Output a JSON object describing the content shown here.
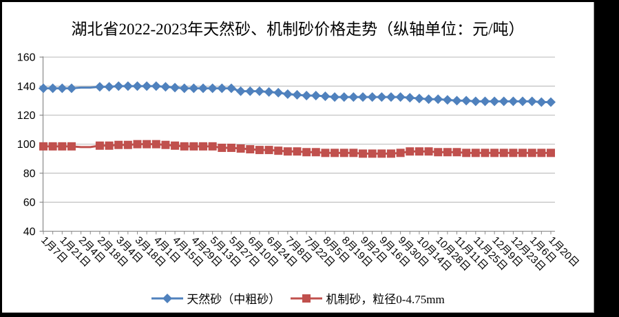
{
  "window": {
    "background": "#000000",
    "chart_background": "#ffffff"
  },
  "chart_data": {
    "type": "line",
    "title": "湖北省2022-2023年天然砂、机制砂价格走势（纵轴单位：元/吨）",
    "xlabel": "",
    "ylabel": "元/吨",
    "ylim": [
      40,
      160
    ],
    "yticks": [
      40,
      60,
      80,
      100,
      120,
      140,
      160
    ],
    "grid": "horizontal",
    "legend_position": "bottom",
    "x_tick_labels": [
      "1月7日",
      "1月21日",
      "2月4日",
      "2月18日",
      "3月4日",
      "3月18日",
      "4月1日",
      "4月15日",
      "4月29日",
      "5月13日",
      "5月27日",
      "6月10日",
      "6月24日",
      "7月8日",
      "7月22日",
      "8月5日",
      "8月19日",
      "9月2日",
      "9月16日",
      "9月30日",
      "10月14日",
      "10月28日",
      "11月11日",
      "11月25日",
      "12月9日",
      "12月23日",
      "1月6日",
      "1月20日"
    ],
    "points_per_label": 2,
    "n_points": 55,
    "no_marker_points": [
      5,
      6
    ],
    "series": [
      {
        "name": "天然砂（中粗砂）",
        "color": "#4F81BD",
        "marker": "diamond",
        "values": [
          138.5,
          138.5,
          138.5,
          138.5,
          139,
          139,
          139.5,
          139.5,
          140,
          140,
          140,
          140,
          140,
          139.5,
          139,
          138.5,
          138.5,
          138.5,
          138.5,
          138.5,
          138.5,
          136.5,
          136.5,
          136.5,
          136,
          135.5,
          134.5,
          134,
          133.5,
          133.5,
          133,
          132.5,
          132.5,
          132.5,
          132.5,
          132.5,
          132.5,
          132.5,
          132.5,
          132,
          131.5,
          131,
          131,
          130.5,
          130,
          130,
          129.5,
          129.5,
          129.5,
          129.5,
          129.5,
          129.5,
          129.5,
          129,
          129
        ]
      },
      {
        "name": "机制砂，粒径0-4.75mm",
        "color": "#C0504D",
        "marker": "square",
        "values": [
          98.5,
          98.5,
          98.5,
          98.5,
          98,
          98,
          99,
          99,
          99.5,
          99.5,
          100,
          100,
          100,
          99.5,
          99,
          98.5,
          98.5,
          98.5,
          98.5,
          97.5,
          97.5,
          97,
          96.5,
          96,
          96,
          95.5,
          95,
          95,
          94.5,
          94.5,
          94,
          94,
          94,
          94,
          93.5,
          93.5,
          93.5,
          93.5,
          94,
          95,
          95,
          95,
          94.5,
          94.5,
          94.5,
          94,
          94,
          94,
          94,
          94,
          94,
          94,
          94,
          94,
          94
        ]
      }
    ],
    "axis_color": "#898989",
    "gridline_color": "#BFBFBF",
    "text_color": "#000000"
  }
}
